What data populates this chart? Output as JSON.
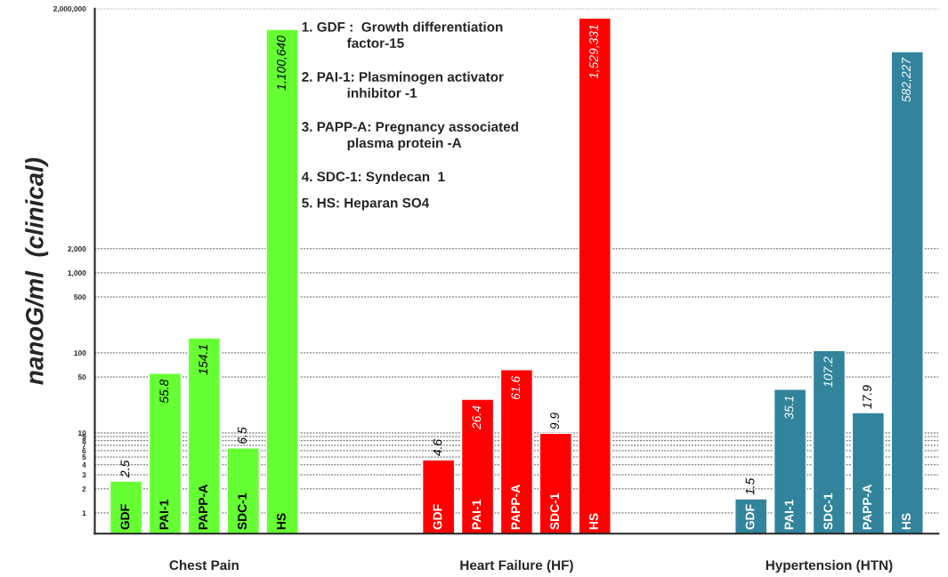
{
  "chart_data": {
    "type": "bar",
    "ylabel": "nanoG/ml  (clinical)",
    "categories": [
      "GDF",
      "PAI-1",
      "PAPP-A",
      "SDC-1",
      "HS",
      null,
      null,
      null,
      "GDF",
      "PAI-1",
      "PAPP-A",
      "SDC-1",
      "HS",
      null,
      null,
      null,
      "GDF",
      "PAI-1",
      "SDC-1",
      "PAPP-A",
      "HS"
    ],
    "series": [
      {
        "name": "Chest Pain",
        "color": "#66ff33",
        "values": [
          2.5,
          55.8,
          154.1,
          6.5,
          1100640,
          null,
          null,
          null,
          null,
          null,
          null,
          null,
          null,
          null,
          null,
          null,
          null,
          null,
          null,
          null,
          null
        ],
        "value_labels": [
          "2.5",
          "55.8",
          "154.1",
          "6.5",
          "1,100,640",
          null,
          null,
          null,
          null,
          null,
          null,
          null,
          null,
          null,
          null,
          null,
          null,
          null,
          null,
          null,
          null
        ]
      },
      {
        "name": "Heart Failure (HF)",
        "color": "#ff0000",
        "values": [
          null,
          null,
          null,
          null,
          null,
          null,
          null,
          null,
          4.6,
          26.4,
          61.6,
          9.9,
          1529331,
          null,
          null,
          null,
          null,
          null,
          null,
          null,
          null
        ],
        "value_labels": [
          null,
          null,
          null,
          null,
          null,
          null,
          null,
          null,
          "4.6",
          "26.4",
          "61.6",
          "9.9",
          "1,529,331",
          null,
          null,
          null,
          null,
          null,
          null,
          null,
          null
        ]
      },
      {
        "name": "Hypertension (HTN)",
        "color": "#31849b",
        "values": [
          null,
          null,
          null,
          null,
          null,
          null,
          null,
          null,
          null,
          null,
          null,
          null,
          null,
          null,
          null,
          null,
          1.5,
          35.1,
          107.2,
          17.9,
          582227
        ],
        "value_labels": [
          null,
          null,
          null,
          null,
          null,
          null,
          null,
          null,
          null,
          null,
          null,
          null,
          null,
          null,
          null,
          null,
          "1.5",
          "35.1",
          "107.2",
          "17.9",
          "582,227"
        ]
      }
    ],
    "log": true,
    "ylim": [
      0.55,
      2000000
    ],
    "yticks": [
      1,
      2,
      3,
      4,
      5,
      6,
      7,
      8,
      9,
      10,
      50,
      100,
      500,
      {
        "value": 1000,
        "label": "1,000"
      },
      {
        "value": 2000,
        "label": "2,000"
      },
      {
        "value": 2000000,
        "label": "2,000,000"
      }
    ],
    "grid": "y",
    "annotations": [
      "1. GDF :  Growth differentiation\n            factor-15",
      "2. PAI-1: Plasminogen activator\n            inhibitor -1",
      "3. PAPP-A: Pregnancy associated\n            plasma protein -A",
      "4. SDC-1: Syndecan  1",
      "5. HS: Heparan SO4"
    ]
  }
}
